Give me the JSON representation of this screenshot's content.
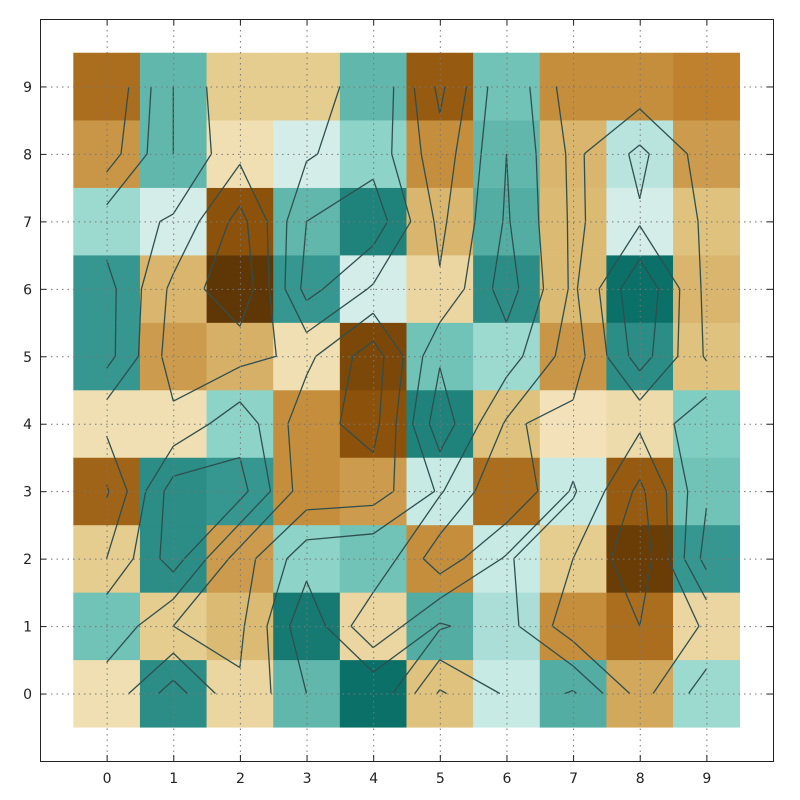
{
  "chart_data": {
    "type": "heatmap",
    "title": "",
    "xlabel": "",
    "ylabel": "",
    "x": [
      0,
      1,
      2,
      3,
      4,
      5,
      6,
      7,
      8,
      9
    ],
    "y": [
      0,
      1,
      2,
      3,
      4,
      5,
      6,
      7,
      8,
      9
    ],
    "xlim": [
      -1,
      10
    ],
    "ylim": [
      -1,
      10
    ],
    "x_ticks": [
      "0",
      "1",
      "2",
      "3",
      "4",
      "5",
      "6",
      "7",
      "8",
      "9"
    ],
    "y_ticks": [
      "0",
      "1",
      "2",
      "3",
      "4",
      "5",
      "6",
      "7",
      "8",
      "9"
    ],
    "grid": true,
    "colormap": "BrBG",
    "vmin": -1,
    "vmax": 1,
    "contours": true,
    "values": [
      [
        -0.1,
        0.8,
        -0.15,
        0.6,
        0.95,
        -0.25,
        0.25,
        0.65,
        -0.35,
        0.4
      ],
      [
        0.55,
        -0.2,
        -0.28,
        0.9,
        -0.15,
        0.65,
        0.35,
        -0.45,
        -0.6,
        -0.15
      ],
      [
        -0.2,
        0.8,
        -0.4,
        0.45,
        0.55,
        -0.45,
        0.25,
        -0.2,
        -0.9,
        0.75
      ],
      [
        -0.65,
        0.8,
        0.75,
        -0.45,
        -0.4,
        0.25,
        -0.6,
        0.25,
        -0.7,
        0.55
      ],
      [
        -0.1,
        -0.1,
        0.45,
        -0.45,
        -0.75,
        0.85,
        -0.25,
        -0.08,
        -0.12,
        0.5
      ],
      [
        0.75,
        -0.4,
        -0.32,
        -0.1,
        -0.82,
        0.55,
        0.4,
        -0.42,
        0.8,
        -0.25
      ],
      [
        0.75,
        -0.3,
        -0.95,
        0.75,
        0.15,
        -0.15,
        0.8,
        -0.28,
        0.95,
        -0.3
      ],
      [
        0.4,
        0.15,
        -0.75,
        0.6,
        0.85,
        -0.3,
        0.65,
        -0.28,
        0.15,
        -0.25
      ],
      [
        -0.42,
        0.6,
        -0.1,
        0.15,
        0.45,
        -0.45,
        0.6,
        -0.3,
        0.3,
        -0.4
      ],
      [
        -0.6,
        0.6,
        -0.2,
        -0.2,
        0.6,
        -0.7,
        0.55,
        -0.45,
        -0.45,
        -0.5
      ]
    ]
  }
}
